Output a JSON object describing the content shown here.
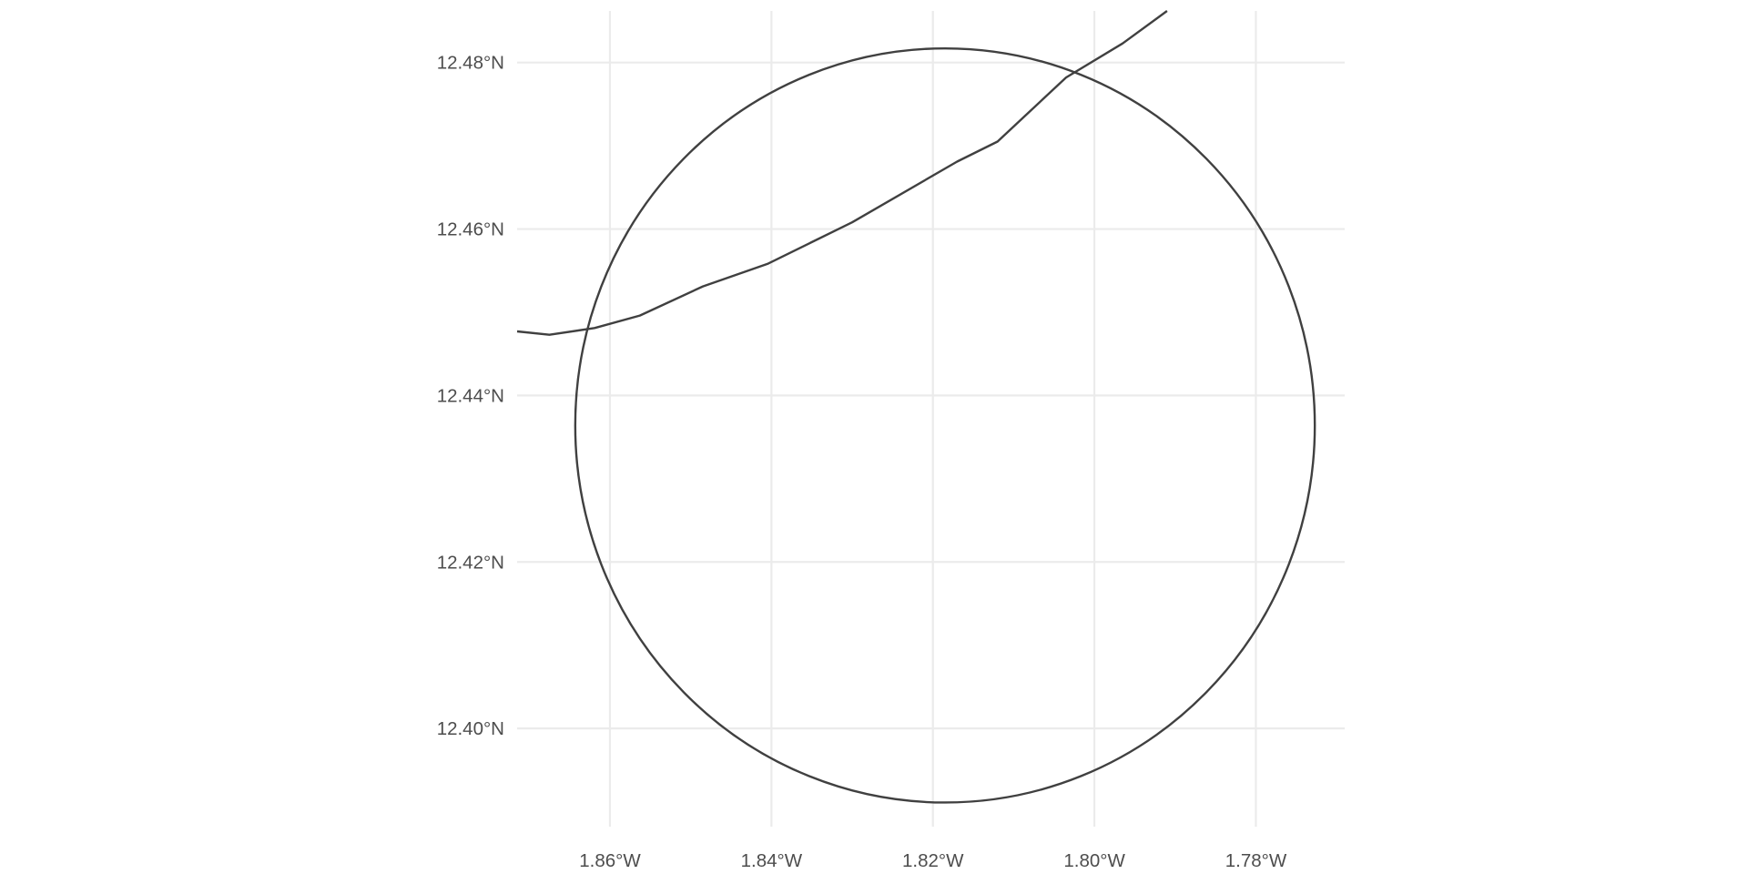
{
  "chart_data": {
    "type": "map",
    "projection": "geographic lon/lat",
    "grid": true,
    "xlim": [
      -1.8715,
      -1.769
    ],
    "ylim": [
      12.3882,
      12.4862
    ],
    "x_ticks": [
      {
        "value": -1.86,
        "label": "1.86°W"
      },
      {
        "value": -1.84,
        "label": "1.84°W"
      },
      {
        "value": -1.82,
        "label": "1.82°W"
      },
      {
        "value": -1.8,
        "label": "1.80°W"
      },
      {
        "value": -1.78,
        "label": "1.78°W"
      }
    ],
    "y_ticks": [
      {
        "value": 12.48,
        "label": "12.48°N"
      },
      {
        "value": 12.46,
        "label": "12.46°N"
      },
      {
        "value": 12.44,
        "label": "12.44°N"
      },
      {
        "value": 12.42,
        "label": "12.42°N"
      },
      {
        "value": 12.4,
        "label": "12.40°N"
      }
    ],
    "circle": {
      "center": [
        -1.8185,
        12.4364
      ],
      "radius_lon": 0.0458,
      "radius_lat": 0.0453
    },
    "route": [
      [
        -1.8715,
        12.4477
      ],
      [
        -1.8675,
        12.4473
      ],
      [
        -1.8619,
        12.4481
      ],
      [
        -1.8563,
        12.4496
      ],
      [
        -1.8485,
        12.4531
      ],
      [
        -1.8405,
        12.4558
      ],
      [
        -1.83,
        12.4608
      ],
      [
        -1.817,
        12.4681
      ],
      [
        -1.812,
        12.4705
      ],
      [
        -1.8035,
        12.4782
      ],
      [
        -1.7965,
        12.4823
      ],
      [
        -1.791,
        12.4862
      ]
    ],
    "colors": {
      "grid": "#ebebeb",
      "line": "#404040",
      "text": "#4d4d4d",
      "background": "#ffffff"
    }
  }
}
